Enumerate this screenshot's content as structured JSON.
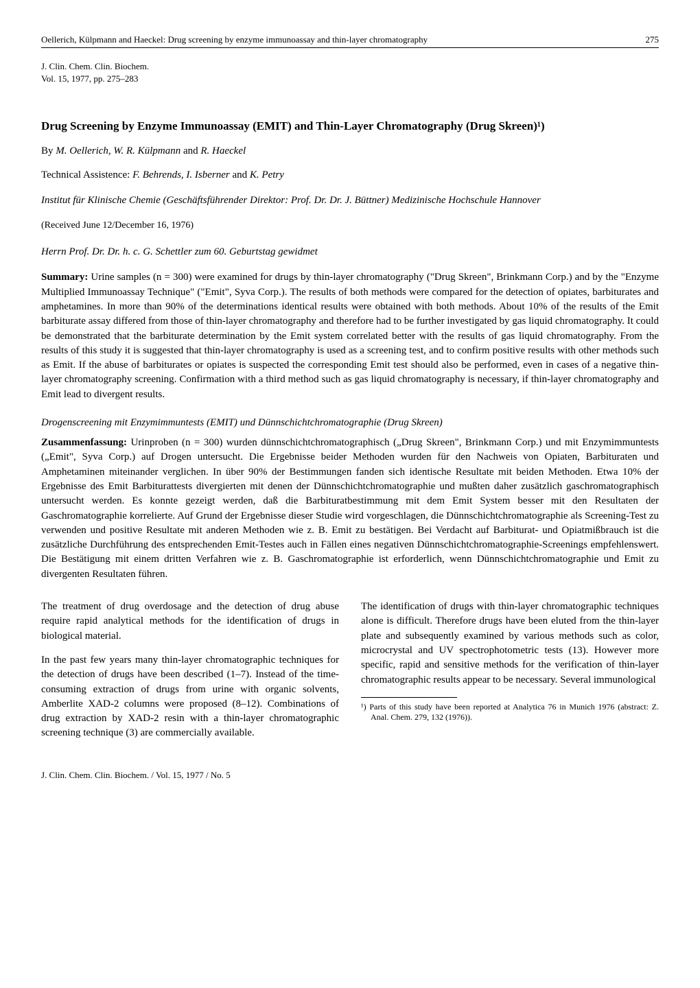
{
  "runningHead": {
    "left": "Oellerich, Külpmann and Haeckel: Drug screening by enzyme immunoassay and thin-layer chromatography",
    "pageNum": "275"
  },
  "journal": {
    "line1": "J. Clin. Chem. Clin. Biochem.",
    "line2": "Vol. 15, 1977, pp. 275–283"
  },
  "title": "Drug Screening by Enzyme Immunoassay (EMIT) and Thin-Layer Chromatography (Drug Skreen)¹)",
  "authors": {
    "by": "By ",
    "a1": "M. Oellerich",
    "sep1": ", ",
    "a2": "W. R. Külpmann",
    "sep2": " and ",
    "a3": "R. Haeckel"
  },
  "techAssist": {
    "label": "Technical Assistence: ",
    "n1": "F. Behrends",
    "s1": ", ",
    "n2": "I. Isberner",
    "s2": " and ",
    "n3": "K. Petry"
  },
  "institute": "Institut für Klinische Chemie (Geschäftsführender Direktor: Prof. Dr. Dr. J. Büttner) Medizinische Hochschule Hannover",
  "received": "(Received June 12/December 16, 1976)",
  "dedication": "Herrn Prof. Dr. Dr. h. c. G. Schettler zum 60. Geburtstag gewidmet",
  "summary": {
    "label": "Summary:",
    "text": " Urine samples (n = 300) were examined for drugs by thin-layer chromatography (\"Drug Skreen\", Brinkmann Corp.) and by the \"Enzyme Multiplied Immunoassay Technique\" (\"Emit\", Syva Corp.). The results of both methods were compared for the detection of opiates, barbiturates and amphetamines. In more than 90% of the determinations identical results were obtained with both methods. About 10% of the results of the Emit barbiturate assay differed from those of thin-layer chromatography and therefore had to be further investigated by gas liquid chromatography. It could be demonstrated that the barbiturate determination by the Emit system correlated better with the results of gas liquid chromatography. From the results of this study it is suggested that thin-layer chromatography is used as a screening test, and to confirm positive results with other methods such as Emit. If the abuse of barbiturates or opiates is suspected the corresponding Emit test should also be performed, even in cases of a negative thin-layer chromatography screening. Confirmation with a third method such as gas liquid chromatography is necessary, if thin-layer chromatography and Emit lead to divergent results."
  },
  "germanTitle": "Drogenscreening mit Enzymimmuntests (EMIT) und Dünnschichtchromatographie (Drug Skreen)",
  "zusammen": {
    "label": "Zusammenfassung:",
    "text": " Urinproben (n = 300) wurden dünnschichtchromatographisch („Drug Skreen\", Brinkmann Corp.) und mit Enzymimmuntests („Emit\", Syva Corp.) auf Drogen untersucht. Die Ergebnisse beider Methoden wurden für den Nachweis von Opiaten, Barbituraten und Amphetaminen miteinander verglichen. In über 90% der Bestimmungen fanden sich identische Resultate mit beiden Methoden. Etwa 10% der Ergebnisse des Emit Barbiturattests divergierten mit denen der Dünnschichtchromatographie und mußten daher zusätzlich gaschromatographisch untersucht werden. Es konnte gezeigt werden, daß die Barbituratbestimmung mit dem Emit System besser mit den Resultaten der Gaschromatographie korrelierte. Auf Grund der Ergebnisse dieser Studie wird vorgeschlagen, die Dünnschichtchromatographie als Screening-Test zu verwenden und positive Resultate mit anderen Methoden wie z. B. Emit zu bestätigen. Bei Verdacht auf Barbiturat- und Opiatmißbrauch ist die zusätzliche Durchführung des entsprechenden Emit-Testes auch in Fällen eines negativen Dünnschichtchromatographie-Screenings empfehlenswert. Die Bestätigung mit einem dritten Verfahren wie z. B. Gaschromatographie ist erforderlich, wenn Dünnschichtchromatographie und Emit zu divergenten Resultaten führen."
  },
  "body": {
    "leftCol": {
      "p1": "The treatment of drug overdosage and the detection of drug abuse require rapid analytical methods for the identification of drugs in biological material.",
      "p2": "In the past few years many thin-layer chromatographic techniques for the detection of drugs have been described (1–7). Instead of the time-consuming extraction of drugs from urine with organic solvents, Amberlite XAD-2 columns were proposed (8–12). Combinations of drug extraction by XAD-2 resin with a thin-layer chromatographic screening technique (3) are commercially available."
    },
    "rightCol": {
      "p1": "The identification of drugs with thin-layer chromatographic techniques alone is difficult. Therefore drugs have been eluted from the thin-layer plate and subsequently examined by various methods such as color, microcrystal and UV spectrophotometric tests (13). However more specific, rapid and sensitive methods for the verification of thin-layer chromatographic results appear to be necessary. Several immunological",
      "footnote": "¹) Parts of this study have been reported at Analytica 76 in Munich 1976 (abstract: Z. Anal. Chem. 279, 132 (1976))."
    }
  },
  "footer": "J. Clin. Chem. Clin. Biochem. / Vol. 15, 1977 / No. 5"
}
